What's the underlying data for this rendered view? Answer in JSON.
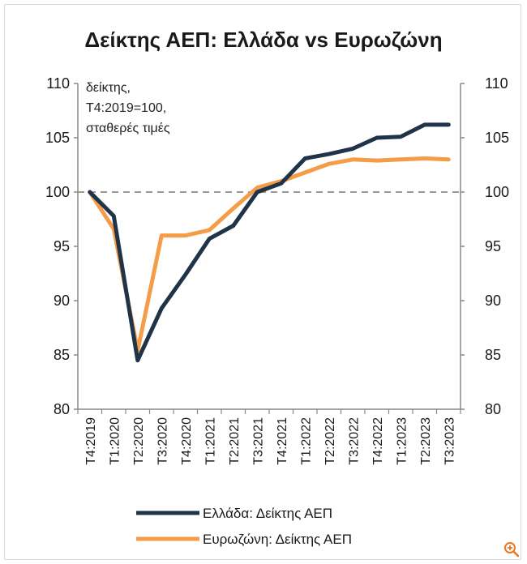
{
  "chart_data": {
    "type": "line",
    "title": "Δείκτης ΑΕΠ: Ελλάδα vs Ευρωζώνη",
    "note": [
      "δείκτης,",
      "Τ4:2019=100,",
      "σταθερές τιμές"
    ],
    "categories": [
      "Τ4:2019",
      "Τ1:2020",
      "Τ2:2020",
      "Τ3:2020",
      "Τ4:2020",
      "Τ1:2021",
      "Τ2:2021",
      "Τ3:2021",
      "Τ4:2021",
      "Τ1:2022",
      "Τ2:2022",
      "Τ3:2022",
      "Τ4:2022",
      "Τ1:2023",
      "Τ2:2023",
      "Τ3:2023"
    ],
    "series": [
      {
        "name": "Ελλάδα: Δείκτης ΑΕΠ",
        "color": "#1f3349",
        "values": [
          100,
          97.8,
          84.5,
          89.3,
          92.4,
          95.7,
          96.9,
          100,
          100.8,
          103.1,
          103.5,
          104.0,
          105.0,
          105.1,
          106.2,
          106.2
        ]
      },
      {
        "name": "Ευρωζώνη: Δείκτης ΑΕΠ",
        "color": "#f59c48",
        "values": [
          100,
          96.6,
          85.4,
          96.0,
          96.0,
          96.5,
          98.5,
          100.4,
          101.0,
          101.8,
          102.6,
          103.0,
          102.9,
          103.0,
          103.1,
          103.0
        ]
      }
    ],
    "ylim": [
      80,
      110
    ],
    "yticks": [
      80,
      85,
      90,
      95,
      100,
      105,
      110
    ],
    "reference_line": 100,
    "legend_position": "bottom",
    "grid": false
  },
  "icons": {
    "zoom": "zoom-in-icon",
    "zoom_color": "#e87722"
  }
}
